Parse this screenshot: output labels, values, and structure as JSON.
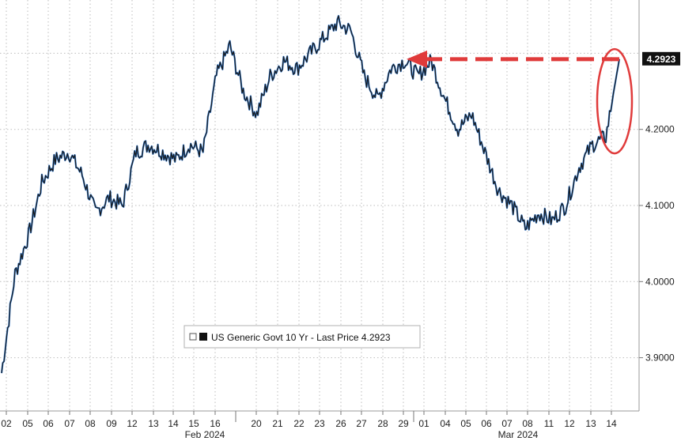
{
  "chart_data": {
    "type": "line",
    "title": "",
    "xlabel": "",
    "ylabel": "",
    "ylim": [
      3.83,
      4.37
    ],
    "y_ticks": [
      "3.9000",
      "4.0000",
      "4.1000",
      "4.2000"
    ],
    "y_axis_side": "right",
    "grid": true,
    "current_price_label": "4.2923",
    "legend": {
      "placement": "bottom-center",
      "text": "US Generic Govt 10 Yr - Last Price 4.2923"
    },
    "months": [
      "Feb 2024",
      "Mar 2024"
    ],
    "x_tick_labels": [
      "02",
      "05",
      "06",
      "07",
      "08",
      "09",
      "12",
      "13",
      "14",
      "15",
      "16",
      "20",
      "21",
      "22",
      "23",
      "26",
      "27",
      "28",
      "29",
      "01",
      "04",
      "05",
      "06",
      "07",
      "08",
      "11",
      "12",
      "13",
      "14"
    ],
    "series": [
      {
        "name": "US Generic Govt 10 Yr",
        "colors": {
          "line": "#1a1a1a",
          "highlight": "#2e7bd6"
        },
        "values": [
          3.88,
          4.01,
          4.06,
          4.13,
          4.16,
          4.17,
          4.14,
          4.09,
          4.11,
          4.1,
          4.17,
          4.18,
          4.17,
          4.16,
          4.18,
          4.17,
          4.27,
          4.31,
          4.25,
          4.22,
          4.27,
          4.29,
          4.28,
          4.3,
          4.32,
          4.34,
          4.33,
          4.27,
          4.24,
          4.28,
          4.29,
          4.27,
          4.29,
          4.24,
          4.2,
          4.22,
          4.17,
          4.12,
          4.1,
          4.07,
          4.09,
          4.08,
          4.1,
          4.15,
          4.18,
          4.19,
          4.2923
        ]
      }
    ],
    "annotations": [
      {
        "type": "dashed-arrow",
        "color": "#e03b3b",
        "from_value": 4.2923,
        "to_value": 4.2923
      },
      {
        "type": "ellipse",
        "color": "#e03b3b"
      }
    ]
  }
}
